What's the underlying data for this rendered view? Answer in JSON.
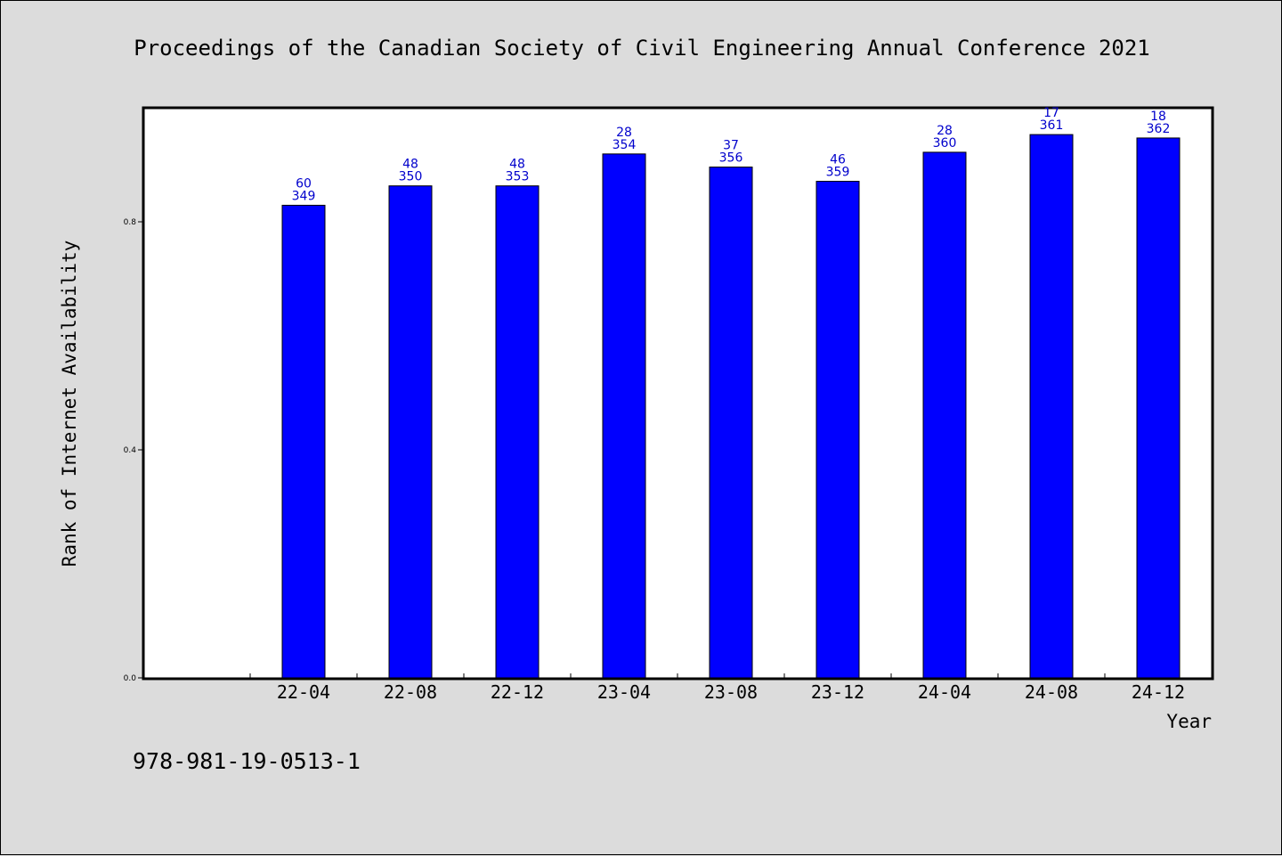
{
  "chart_data": {
    "type": "bar",
    "title": "Proceedings of the Canadian Society of Civil Engineering Annual Conference 2021",
    "xlabel": "Year",
    "ylabel": "Rank of Internet Availability",
    "ylim": [
      0,
      1.0
    ],
    "yticks": [
      "0.0",
      "0.4",
      "0.8"
    ],
    "grid": false,
    "categories": [
      "22-04",
      "22-08",
      "22-12",
      "23-04",
      "23-08",
      "23-12",
      "24-04",
      "24-08",
      "24-12"
    ],
    "values": [
      0.829,
      0.863,
      0.863,
      0.919,
      0.896,
      0.871,
      0.922,
      0.953,
      0.947
    ],
    "labels_top": [
      "60",
      "48",
      "48",
      "28",
      "37",
      "46",
      "28",
      "17",
      "18"
    ],
    "labels_bottom": [
      "349",
      "350",
      "353",
      "354",
      "356",
      "359",
      "360",
      "361",
      "362"
    ],
    "bar_color": "#0000ff",
    "label_color": "#0000cc"
  },
  "footer": {
    "isbn": "978-981-19-0513-1"
  }
}
